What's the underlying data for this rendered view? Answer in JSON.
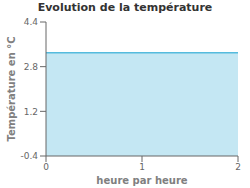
{
  "chart_data": {
    "type": "area",
    "title": "Evolution de la température",
    "xlabel": "heure par heure",
    "ylabel": "Température en °C",
    "x": [
      0,
      2
    ],
    "values": [
      3.3,
      3.3
    ],
    "color": "#55bbdd",
    "xlim": [
      0,
      2
    ],
    "ylim": [
      -0.4,
      4.4
    ],
    "xticks": [
      0,
      1,
      2
    ],
    "yticks": [
      -0.4,
      1.2,
      2.8,
      4.4
    ],
    "grid": false
  }
}
